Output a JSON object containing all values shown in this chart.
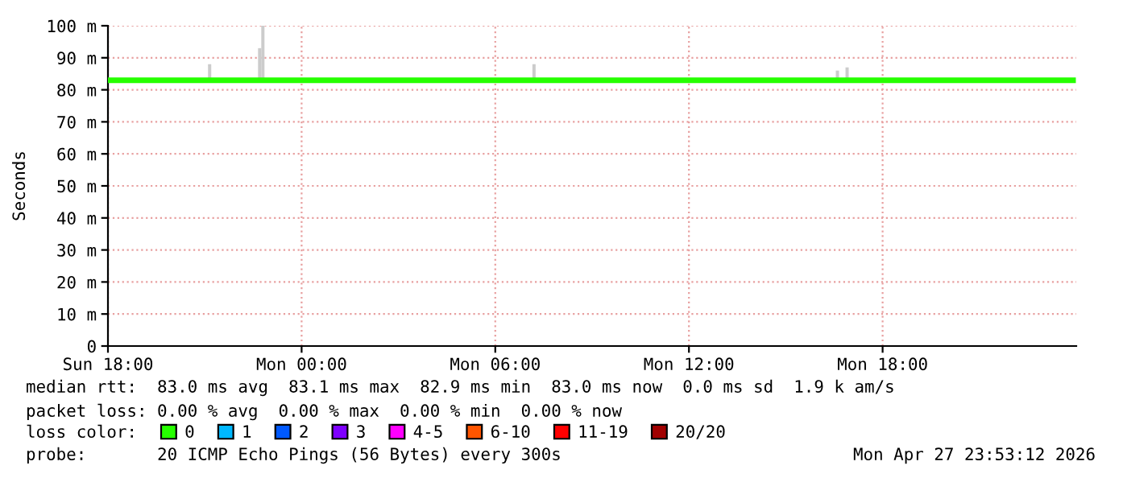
{
  "chart_data": {
    "type": "line",
    "ylabel": "Seconds",
    "legend_title": "loss color:",
    "xlim": [
      "2026-04-26T18:00",
      "2026-04-28T00:00"
    ],
    "xticks": [
      {
        "value": "2026-04-26T18:00",
        "label": "Sun 18:00"
      },
      {
        "value": "2026-04-27T00:00",
        "label": "Mon 00:00"
      },
      {
        "value": "2026-04-27T06:00",
        "label": "Mon 06:00"
      },
      {
        "value": "2026-04-27T12:00",
        "label": "Mon 12:00"
      },
      {
        "value": "2026-04-27T18:00",
        "label": "Mon 18:00"
      }
    ],
    "ylim": [
      0,
      100
    ],
    "yticks": [
      0,
      {
        "value": 10,
        "label": "10 m"
      },
      {
        "value": 20,
        "label": "20 m"
      },
      {
        "value": 30,
        "label": "30 m"
      },
      {
        "value": 40,
        "label": "40 m"
      },
      {
        "value": 50,
        "label": "50 m"
      },
      {
        "value": 60,
        "label": "60 m"
      },
      {
        "value": 70,
        "label": "70 m"
      },
      {
        "value": 80,
        "label": "80 m"
      },
      {
        "value": 90,
        "label": "90 m"
      },
      {
        "value": 100,
        "label": "100 m"
      }
    ],
    "grid": true,
    "legend": "bottom",
    "series": [
      {
        "type": "bar",
        "color": "#cccccc",
        "x": [
          "2026-04-26T21:09",
          "2026-04-26T22:42",
          "2026-04-26T22:48",
          "2026-04-27T07:12",
          "2026-04-27T16:36",
          "2026-04-27T16:54"
        ],
        "base": [
          83,
          83,
          83,
          83,
          83,
          83
        ],
        "values": [
          5,
          10,
          17,
          5,
          3,
          4
        ]
      },
      {
        "name": "0",
        "color": "#26ff00",
        "x": [
          "2026-04-26T18:00",
          "2026-04-27T15:48",
          "2026-04-27T15:52",
          "2026-04-27T15:57",
          "2026-04-27T23:54"
        ],
        "values": [
          83,
          83,
          null,
          83,
          83
        ]
      },
      {
        "name": "1",
        "color": "#00b8ff"
      },
      {
        "name": "2",
        "color": "#0059ff"
      },
      {
        "name": "3",
        "color": "#7e00ff"
      },
      {
        "name": "4-5",
        "color": "#ff00ff"
      },
      {
        "name": "6-10",
        "color": "#ff5500"
      },
      {
        "name": "11-19",
        "color": "#ff0000"
      },
      {
        "name": "20/20",
        "color": "#a10000"
      }
    ],
    "annotations": [
      "median rtt:  83.0 ms avg  83.1 ms max  82.9 ms min  83.0 ms now  0.0 ms sd  1.9 k am/s",
      "packet loss: 0.00 % avg  0.00 % max  0.00 % min  0.00 % now",
      "probe:       20 ICMP Echo Pings (56 Bytes) every 300s",
      "Mon Apr 27 23:53:12 2026"
    ]
  }
}
